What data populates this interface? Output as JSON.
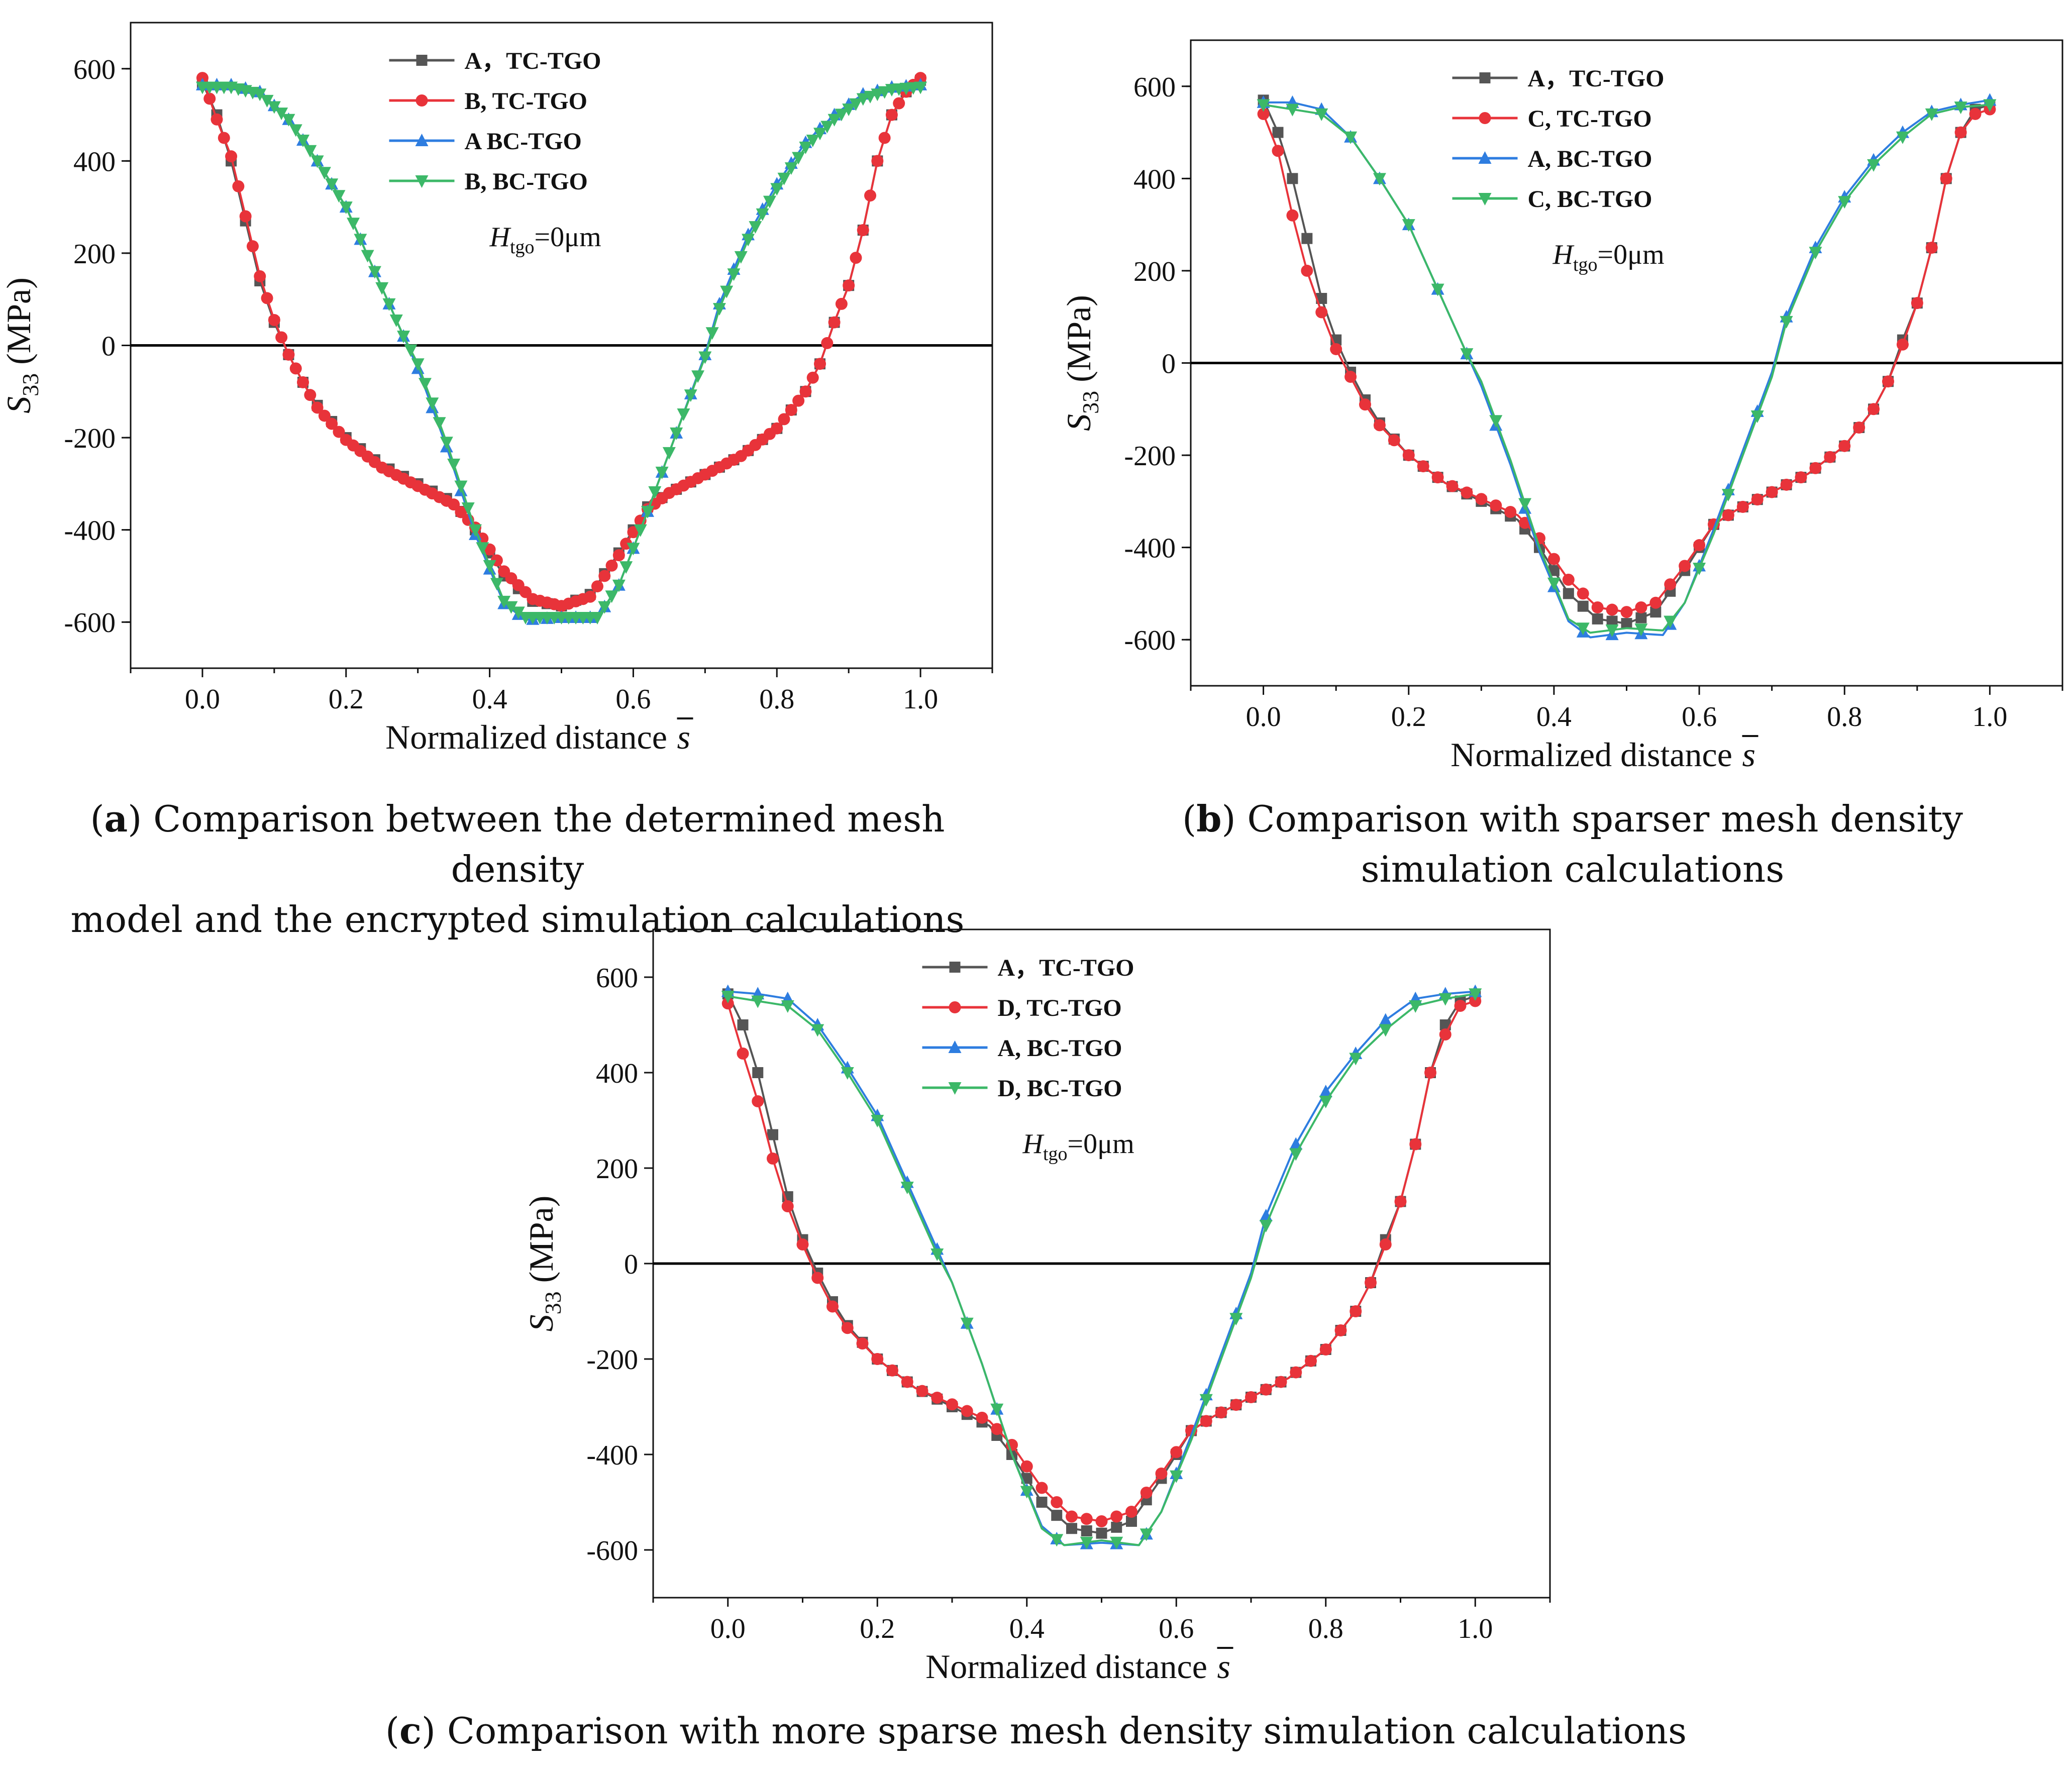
{
  "colors": {
    "A": "#555555",
    "comp_tc": "#e8333a",
    "A_bc": "#2e7de0",
    "comp_bc": "#3cb868",
    "axis": "#111111",
    "zero_line": "#000000"
  },
  "chart_data": [
    {
      "id": "a",
      "type": "line",
      "caption_letter": "a",
      "caption_lines": [
        ") Comparison between the determined mesh density",
        "model and the encrypted simulation calculations"
      ],
      "xlabel": "Normalized distance",
      "xlabel_symbol": "s",
      "ylabel_main": "S",
      "ylabel_sub": "33",
      "ylabel_unit": " (MPa)",
      "annotation_main": "H",
      "annotation_sub": "tgo",
      "annotation_rest": "=0μm",
      "xlim": [
        -0.1,
        1.1
      ],
      "ylim": [
        -700,
        700
      ],
      "xticks": [
        0.0,
        0.2,
        0.4,
        0.6,
        0.8,
        1.0
      ],
      "xtick_labels": [
        "0.0",
        "0.2",
        "0.4",
        "0.6",
        "0.8",
        "1.0"
      ],
      "yticks": [
        600,
        400,
        200,
        0,
        -200,
        -400,
        -600
      ],
      "ytick_labels": [
        "600",
        "400",
        "200",
        "0",
        "-200",
        "-400",
        "-600"
      ],
      "legend": [
        "A，TC-TGO",
        "B,   TC-TGO",
        "A    BC-TGO",
        "B,   BC-TGO"
      ],
      "series": [
        {
          "name": "A，TC-TGO",
          "marker": "square",
          "color_key": "A",
          "marker_step": 0.02,
          "x": [
            0,
            0.02,
            0.04,
            0.06,
            0.08,
            0.1,
            0.12,
            0.14,
            0.16,
            0.2,
            0.25,
            0.3,
            0.35,
            0.38,
            0.42,
            0.46,
            0.5,
            0.54,
            0.58,
            0.62,
            0.65,
            0.7,
            0.75,
            0.8,
            0.84,
            0.86,
            0.88,
            0.9,
            0.92,
            0.94,
            0.96,
            0.98,
            1.0
          ],
          "y": [
            570,
            500,
            400,
            270,
            140,
            50,
            -20,
            -80,
            -130,
            -200,
            -260,
            -300,
            -340,
            -400,
            -500,
            -555,
            -565,
            -540,
            -450,
            -350,
            -320,
            -280,
            -240,
            -180,
            -100,
            -40,
            50,
            130,
            250,
            400,
            500,
            550,
            575
          ]
        },
        {
          "name": "B,   TC-TGO",
          "marker": "circle",
          "color_key": "comp_tc",
          "marker_step": 0.01,
          "x": [
            0,
            0.02,
            0.04,
            0.06,
            0.08,
            0.1,
            0.12,
            0.14,
            0.16,
            0.2,
            0.25,
            0.3,
            0.35,
            0.38,
            0.42,
            0.46,
            0.5,
            0.54,
            0.58,
            0.62,
            0.65,
            0.7,
            0.75,
            0.8,
            0.84,
            0.86,
            0.88,
            0.9,
            0.92,
            0.94,
            0.96,
            0.98,
            1.0
          ],
          "y": [
            580,
            490,
            410,
            280,
            150,
            55,
            -20,
            -80,
            -135,
            -205,
            -265,
            -305,
            -345,
            -395,
            -490,
            -550,
            -565,
            -545,
            -455,
            -355,
            -320,
            -280,
            -240,
            -180,
            -100,
            -40,
            50,
            130,
            250,
            400,
            500,
            550,
            580
          ]
        },
        {
          "name": "A    BC-TGO",
          "marker": "triangle-up",
          "color_key": "A_bc",
          "marker_step": 0.02,
          "x": [
            0,
            0.04,
            0.08,
            0.12,
            0.16,
            0.2,
            0.24,
            0.28,
            0.3,
            0.34,
            0.38,
            0.42,
            0.45,
            0.5,
            0.55,
            0.58,
            0.62,
            0.66,
            0.7,
            0.72,
            0.76,
            0.8,
            0.84,
            0.88,
            0.92,
            0.96,
            1.0
          ],
          "y": [
            565,
            565,
            550,
            490,
            400,
            300,
            160,
            20,
            -50,
            -220,
            -410,
            -560,
            -595,
            -590,
            -590,
            -520,
            -360,
            -190,
            -20,
            90,
            240,
            350,
            440,
            500,
            545,
            560,
            565
          ]
        },
        {
          "name": "B,   BC-TGO",
          "marker": "triangle-down",
          "color_key": "comp_bc",
          "marker_step": 0.01,
          "x": [
            0,
            0.04,
            0.08,
            0.12,
            0.16,
            0.2,
            0.24,
            0.28,
            0.3,
            0.34,
            0.38,
            0.42,
            0.45,
            0.5,
            0.55,
            0.58,
            0.62,
            0.66,
            0.7,
            0.72,
            0.76,
            0.8,
            0.84,
            0.88,
            0.92,
            0.96,
            1.0
          ],
          "y": [
            560,
            560,
            545,
            490,
            400,
            300,
            160,
            20,
            -40,
            -210,
            -400,
            -555,
            -590,
            -590,
            -590,
            -520,
            -360,
            -190,
            -25,
            80,
            230,
            340,
            430,
            490,
            535,
            555,
            560
          ]
        }
      ]
    },
    {
      "id": "b",
      "type": "line",
      "caption_letter": "b",
      "caption_lines": [
        ") Comparison with sparser mesh density",
        "simulation calculations"
      ],
      "xlabel": "Normalized distance",
      "xlabel_symbol": "s",
      "ylabel_main": "S",
      "ylabel_sub": "33",
      "ylabel_unit": " (MPa)",
      "annotation_main": "H",
      "annotation_sub": "tgo",
      "annotation_rest": "=0μm",
      "xlim": [
        -0.1,
        1.1
      ],
      "ylim": [
        -700,
        700
      ],
      "xticks": [
        0.0,
        0.2,
        0.4,
        0.6,
        0.8,
        1.0
      ],
      "xtick_labels": [
        "0.0",
        "0.2",
        "0.4",
        "0.6",
        "0.8",
        "1.0"
      ],
      "yticks": [
        600,
        400,
        200,
        0,
        -200,
        -400,
        -600
      ],
      "ytick_labels": [
        "600",
        "400",
        "200",
        "0",
        "-200",
        "-400",
        "-600"
      ],
      "legend": [
        "A，TC-TGO",
        "C,   TC-TGO",
        "A,   BC-TGO",
        "C,   BC-TGO"
      ],
      "series": [
        {
          "name": "A，TC-TGO",
          "marker": "square",
          "color_key": "A",
          "marker_step": 0.02,
          "x": [
            0,
            0.02,
            0.04,
            0.06,
            0.08,
            0.1,
            0.12,
            0.14,
            0.16,
            0.2,
            0.25,
            0.3,
            0.35,
            0.38,
            0.42,
            0.46,
            0.5,
            0.54,
            0.58,
            0.62,
            0.65,
            0.7,
            0.75,
            0.8,
            0.84,
            0.86,
            0.88,
            0.9,
            0.92,
            0.94,
            0.96,
            0.98,
            1.0
          ],
          "y": [
            570,
            500,
            400,
            270,
            140,
            50,
            -20,
            -80,
            -130,
            -200,
            -260,
            -300,
            -340,
            -400,
            -500,
            -555,
            -565,
            -540,
            -450,
            -350,
            -320,
            -280,
            -240,
            -180,
            -100,
            -40,
            50,
            130,
            250,
            400,
            500,
            550,
            560
          ]
        },
        {
          "name": "C,   TC-TGO",
          "marker": "circle",
          "color_key": "comp_tc",
          "marker_step": 0.02,
          "x": [
            0,
            0.02,
            0.04,
            0.06,
            0.08,
            0.1,
            0.12,
            0.14,
            0.16,
            0.2,
            0.25,
            0.3,
            0.35,
            0.38,
            0.42,
            0.46,
            0.5,
            0.54,
            0.58,
            0.62,
            0.65,
            0.7,
            0.75,
            0.8,
            0.84,
            0.86,
            0.88,
            0.9,
            0.92,
            0.94,
            0.96,
            0.98,
            1.0
          ],
          "y": [
            540,
            460,
            320,
            200,
            110,
            30,
            -30,
            -90,
            -135,
            -200,
            -260,
            -295,
            -330,
            -380,
            -470,
            -530,
            -540,
            -520,
            -440,
            -350,
            -320,
            -280,
            -240,
            -180,
            -100,
            -40,
            40,
            130,
            250,
            400,
            500,
            540,
            550
          ]
        },
        {
          "name": "A,   BC-TGO",
          "marker": "triangle-up",
          "color_key": "A_bc",
          "marker_step": 0.04,
          "x": [
            0,
            0.04,
            0.08,
            0.12,
            0.16,
            0.2,
            0.24,
            0.28,
            0.3,
            0.34,
            0.38,
            0.42,
            0.45,
            0.5,
            0.55,
            0.58,
            0.62,
            0.66,
            0.7,
            0.72,
            0.76,
            0.8,
            0.84,
            0.88,
            0.92,
            0.96,
            1.0
          ],
          "y": [
            565,
            565,
            550,
            490,
            400,
            300,
            160,
            20,
            -50,
            -220,
            -410,
            -560,
            -595,
            -585,
            -590,
            -520,
            -360,
            -190,
            -20,
            100,
            250,
            360,
            440,
            500,
            545,
            560,
            570
          ]
        },
        {
          "name": "C,   BC-TGO",
          "marker": "triangle-down",
          "color_key": "comp_bc",
          "marker_step": 0.04,
          "x": [
            0,
            0.04,
            0.08,
            0.12,
            0.16,
            0.2,
            0.24,
            0.28,
            0.3,
            0.34,
            0.38,
            0.42,
            0.45,
            0.5,
            0.55,
            0.58,
            0.62,
            0.66,
            0.7,
            0.72,
            0.76,
            0.8,
            0.84,
            0.88,
            0.92,
            0.96,
            1.0
          ],
          "y": [
            560,
            550,
            540,
            490,
            400,
            300,
            160,
            20,
            -40,
            -210,
            -400,
            -555,
            -585,
            -575,
            -580,
            -520,
            -370,
            -200,
            -30,
            90,
            240,
            350,
            430,
            490,
            540,
            555,
            560
          ]
        }
      ]
    },
    {
      "id": "c",
      "type": "line",
      "caption_letter": "c",
      "caption_lines": [
        ") Comparison with more sparse mesh density simulation calculations"
      ],
      "xlabel": "Normalized distance",
      "xlabel_symbol": "s",
      "ylabel_main": "S",
      "ylabel_sub": "33",
      "ylabel_unit": " (MPa)",
      "annotation_main": "H",
      "annotation_sub": "tgo",
      "annotation_rest": "=0μm",
      "xlim": [
        -0.1,
        1.1
      ],
      "ylim": [
        -700,
        700
      ],
      "xticks": [
        0.0,
        0.2,
        0.4,
        0.6,
        0.8,
        1.0
      ],
      "xtick_labels": [
        "0.0",
        "0.2",
        "0.4",
        "0.6",
        "0.8",
        "1.0"
      ],
      "yticks": [
        600,
        400,
        200,
        0,
        -200,
        -400,
        -600
      ],
      "ytick_labels": [
        "600",
        "400",
        "200",
        "0",
        "-200",
        "-400",
        "-600"
      ],
      "legend": [
        "A，TC-TGO",
        "D,   TC-TGO",
        "A,   BC-TGO",
        "D,   BC-TGO"
      ],
      "series": [
        {
          "name": "A，TC-TGO",
          "marker": "square",
          "color_key": "A",
          "marker_step": 0.02,
          "x": [
            0,
            0.02,
            0.04,
            0.06,
            0.08,
            0.1,
            0.12,
            0.14,
            0.16,
            0.2,
            0.25,
            0.3,
            0.35,
            0.38,
            0.42,
            0.46,
            0.5,
            0.54,
            0.58,
            0.62,
            0.65,
            0.7,
            0.75,
            0.8,
            0.84,
            0.86,
            0.88,
            0.9,
            0.92,
            0.94,
            0.96,
            0.98,
            1.0
          ],
          "y": [
            565,
            500,
            400,
            270,
            140,
            50,
            -20,
            -80,
            -130,
            -200,
            -260,
            -300,
            -340,
            -400,
            -500,
            -555,
            -565,
            -540,
            -450,
            -350,
            -320,
            -280,
            -240,
            -180,
            -100,
            -40,
            50,
            130,
            250,
            400,
            500,
            550,
            560
          ]
        },
        {
          "name": "D,   TC-TGO",
          "marker": "circle",
          "color_key": "comp_tc",
          "marker_step": 0.02,
          "x": [
            0,
            0.02,
            0.04,
            0.06,
            0.08,
            0.1,
            0.12,
            0.14,
            0.16,
            0.2,
            0.25,
            0.3,
            0.35,
            0.38,
            0.42,
            0.46,
            0.5,
            0.54,
            0.58,
            0.62,
            0.65,
            0.7,
            0.75,
            0.8,
            0.84,
            0.86,
            0.88,
            0.9,
            0.92,
            0.94,
            0.96,
            0.98,
            1.0
          ],
          "y": [
            545,
            440,
            340,
            220,
            120,
            40,
            -30,
            -90,
            -135,
            -200,
            -260,
            -295,
            -330,
            -380,
            -470,
            -530,
            -540,
            -520,
            -440,
            -350,
            -320,
            -280,
            -240,
            -180,
            -100,
            -40,
            40,
            130,
            250,
            400,
            480,
            540,
            550
          ]
        },
        {
          "name": "A,   BC-TGO",
          "marker": "triangle-up",
          "color_key": "A_bc",
          "marker_step": 0.04,
          "x": [
            0,
            0.04,
            0.08,
            0.12,
            0.16,
            0.2,
            0.24,
            0.28,
            0.3,
            0.34,
            0.38,
            0.42,
            0.45,
            0.5,
            0.55,
            0.58,
            0.62,
            0.66,
            0.7,
            0.72,
            0.76,
            0.8,
            0.84,
            0.88,
            0.92,
            0.96,
            1.0
          ],
          "y": [
            570,
            565,
            555,
            500,
            410,
            310,
            170,
            30,
            -40,
            -210,
            -400,
            -550,
            -590,
            -585,
            -590,
            -520,
            -360,
            -190,
            -20,
            100,
            250,
            360,
            440,
            510,
            555,
            565,
            570
          ]
        },
        {
          "name": "D,   BC-TGO",
          "marker": "triangle-down",
          "color_key": "comp_bc",
          "marker_step": 0.04,
          "x": [
            0,
            0.04,
            0.08,
            0.12,
            0.16,
            0.2,
            0.24,
            0.28,
            0.3,
            0.34,
            0.38,
            0.42,
            0.45,
            0.5,
            0.55,
            0.58,
            0.62,
            0.66,
            0.7,
            0.72,
            0.76,
            0.8,
            0.84,
            0.88,
            0.92,
            0.96,
            1.0
          ],
          "y": [
            560,
            550,
            540,
            490,
            400,
            300,
            160,
            20,
            -40,
            -210,
            -400,
            -555,
            -590,
            -580,
            -590,
            -520,
            -370,
            -200,
            -30,
            80,
            230,
            340,
            430,
            490,
            540,
            555,
            565
          ]
        }
      ]
    }
  ]
}
